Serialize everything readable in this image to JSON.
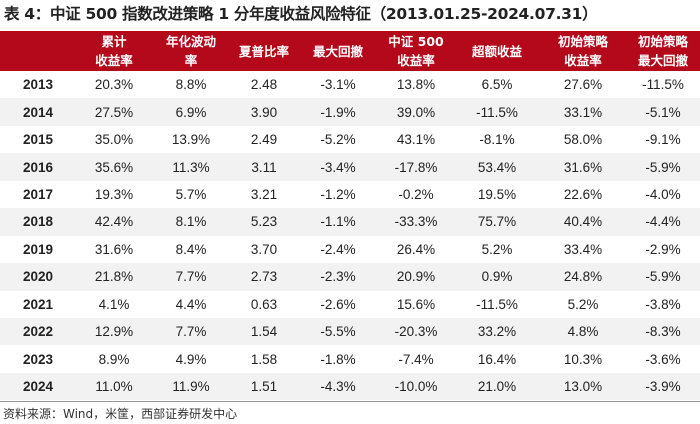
{
  "title": "表 4：中证 500 指数改进策略 1 分年度收益风险特征（2013.01.25-2024.07.31）",
  "headers": [
    [
      "",
      ""
    ],
    [
      "累计",
      "收益率"
    ],
    [
      "年化波动",
      "率"
    ],
    [
      "夏普比率",
      ""
    ],
    [
      "最大回撤",
      ""
    ],
    [
      "中证 500",
      "收益率"
    ],
    [
      "超额收益",
      ""
    ],
    [
      "初始策略",
      "收益率"
    ],
    [
      "初始策略",
      "最大回撤"
    ]
  ],
  "rows": [
    [
      "2013",
      "20.3%",
      "8.8%",
      "2.48",
      "-3.1%",
      "13.8%",
      "6.5%",
      "27.6%",
      "-11.5%"
    ],
    [
      "2014",
      "27.5%",
      "6.9%",
      "3.90",
      "-1.9%",
      "39.0%",
      "-11.5%",
      "33.1%",
      "-5.1%"
    ],
    [
      "2015",
      "35.0%",
      "13.9%",
      "2.49",
      "-5.2%",
      "43.1%",
      "-8.1%",
      "58.0%",
      "-9.1%"
    ],
    [
      "2016",
      "35.6%",
      "11.3%",
      "3.11",
      "-3.4%",
      "-17.8%",
      "53.4%",
      "31.6%",
      "-5.9%"
    ],
    [
      "2017",
      "19.3%",
      "5.7%",
      "3.21",
      "-1.2%",
      "-0.2%",
      "19.5%",
      "22.6%",
      "-4.0%"
    ],
    [
      "2018",
      "42.4%",
      "8.1%",
      "5.23",
      "-1.1%",
      "-33.3%",
      "75.7%",
      "40.4%",
      "-4.4%"
    ],
    [
      "2019",
      "31.6%",
      "8.4%",
      "3.70",
      "-2.4%",
      "26.4%",
      "5.2%",
      "33.4%",
      "-2.9%"
    ],
    [
      "2020",
      "21.8%",
      "7.7%",
      "2.73",
      "-2.3%",
      "20.9%",
      "0.9%",
      "24.8%",
      "-5.9%"
    ],
    [
      "2021",
      "4.1%",
      "4.4%",
      "0.63",
      "-2.6%",
      "15.6%",
      "-11.5%",
      "5.2%",
      "-3.8%"
    ],
    [
      "2022",
      "12.9%",
      "7.7%",
      "1.54",
      "-5.5%",
      "-20.3%",
      "33.2%",
      "4.8%",
      "-8.3%"
    ],
    [
      "2023",
      "8.9%",
      "4.9%",
      "1.58",
      "-1.8%",
      "-7.4%",
      "16.4%",
      "10.3%",
      "-3.6%"
    ],
    [
      "2024",
      "11.0%",
      "11.9%",
      "1.51",
      "-4.3%",
      "-10.0%",
      "21.0%",
      "13.0%",
      "-3.9%"
    ]
  ],
  "source": "资料来源：Wind，米筐，西部证券研发中心",
  "colors": {
    "header_bg": "#b3091b",
    "stripe": "#f2f2f2"
  }
}
